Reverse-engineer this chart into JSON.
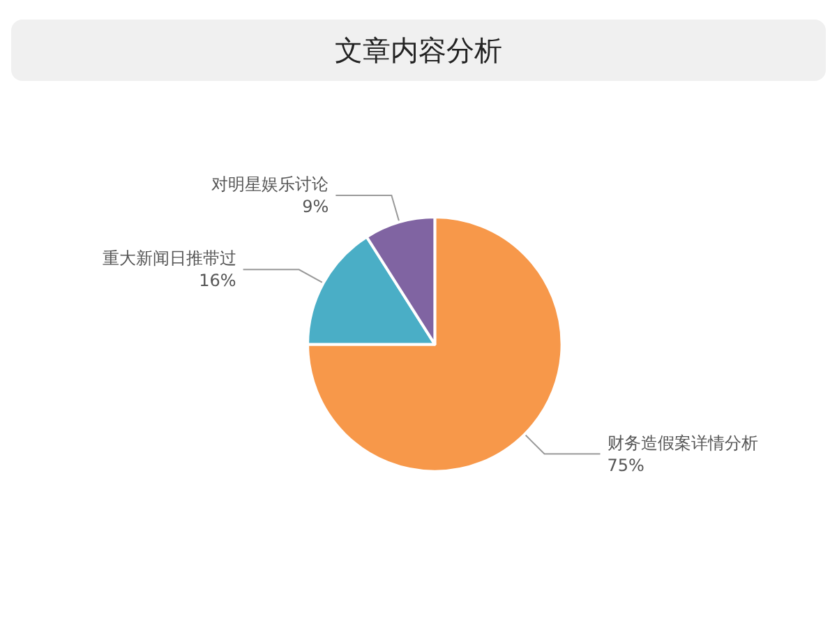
{
  "chart_data": {
    "type": "pie",
    "title": "文章内容分析",
    "categories": [
      "财务造假案详情分析",
      "重大新闻日推带过",
      "对明星娱乐讨论"
    ],
    "values": [
      75,
      16,
      9
    ],
    "value_labels": [
      "75%",
      "16%",
      "9%"
    ],
    "colors": [
      "#f7984a",
      "#4aaec6",
      "#8064a2"
    ],
    "legend": false
  }
}
